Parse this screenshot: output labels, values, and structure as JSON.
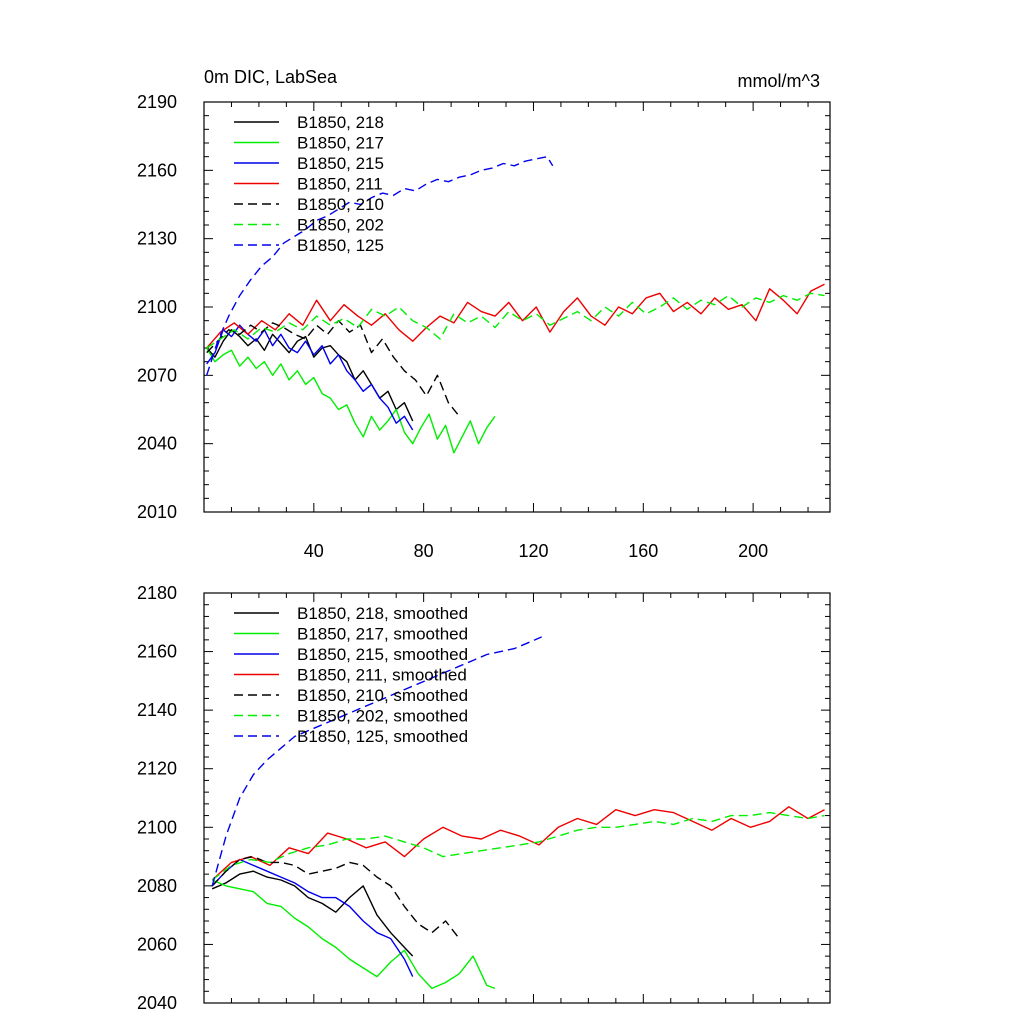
{
  "figure": {
    "title": "0m DIC, LabSea",
    "units": "mmol/m^3"
  },
  "chart_data": [
    {
      "type": "line",
      "panel": "top",
      "title": "0m DIC, LabSea",
      "units": "mmol/m^3",
      "xlim": [
        0,
        228
      ],
      "ylim": [
        2010,
        2190
      ],
      "xticks": [
        40,
        80,
        120,
        160,
        200
      ],
      "yticks": [
        2010,
        2040,
        2070,
        2100,
        2130,
        2160,
        2190
      ],
      "legend_position": "top-left",
      "series": [
        {
          "name": "B1850, 218",
          "color": "#000000",
          "dash": "solid",
          "x": [
            1,
            4,
            7,
            10,
            13,
            16,
            19,
            22,
            25,
            28,
            31,
            34,
            37,
            40,
            43,
            46,
            49,
            52,
            55,
            58,
            61,
            64,
            67,
            70,
            73,
            76
          ],
          "y": [
            2082,
            2078,
            2085,
            2090,
            2087,
            2083,
            2086,
            2081,
            2088,
            2084,
            2080,
            2085,
            2087,
            2078,
            2082,
            2083,
            2079,
            2076,
            2068,
            2072,
            2066,
            2060,
            2063,
            2055,
            2058,
            2050
          ]
        },
        {
          "name": "B1850, 217",
          "color": "#00ee00",
          "dash": "solid",
          "x": [
            1,
            4,
            7,
            10,
            13,
            16,
            19,
            22,
            25,
            28,
            31,
            34,
            37,
            40,
            43,
            46,
            49,
            52,
            55,
            58,
            61,
            64,
            67,
            70,
            73,
            76,
            79,
            82,
            85,
            88,
            91,
            94,
            97,
            100,
            103,
            106
          ],
          "y": [
            2082,
            2076,
            2079,
            2081,
            2074,
            2078,
            2073,
            2076,
            2070,
            2075,
            2068,
            2072,
            2066,
            2069,
            2062,
            2060,
            2055,
            2057,
            2049,
            2043,
            2052,
            2046,
            2050,
            2055,
            2045,
            2040,
            2047,
            2053,
            2042,
            2048,
            2036,
            2043,
            2050,
            2040,
            2047,
            2052
          ]
        },
        {
          "name": "B1850, 215",
          "color": "#0000ee",
          "dash": "solid",
          "x": [
            1,
            4,
            7,
            10,
            13,
            16,
            19,
            22,
            25,
            28,
            31,
            34,
            37,
            40,
            43,
            46,
            49,
            52,
            55,
            58,
            61,
            64,
            67,
            70,
            73,
            76
          ],
          "y": [
            2075,
            2080,
            2090,
            2087,
            2092,
            2088,
            2085,
            2090,
            2083,
            2088,
            2082,
            2080,
            2085,
            2079,
            2083,
            2075,
            2079,
            2072,
            2068,
            2063,
            2066,
            2060,
            2056,
            2049,
            2052,
            2046
          ]
        },
        {
          "name": "B1850, 211",
          "color": "#ee0000",
          "dash": "solid",
          "x": [
            1,
            6,
            11,
            16,
            21,
            26,
            31,
            36,
            41,
            46,
            51,
            56,
            61,
            66,
            71,
            76,
            81,
            86,
            91,
            96,
            101,
            106,
            111,
            116,
            121,
            126,
            131,
            136,
            141,
            146,
            151,
            156,
            161,
            166,
            171,
            176,
            181,
            186,
            191,
            196,
            201,
            206,
            211,
            216,
            221,
            226
          ],
          "y": [
            2082,
            2089,
            2093,
            2088,
            2094,
            2090,
            2097,
            2092,
            2103,
            2094,
            2101,
            2096,
            2092,
            2097,
            2090,
            2085,
            2091,
            2096,
            2093,
            2102,
            2098,
            2096,
            2102,
            2094,
            2100,
            2089,
            2098,
            2104,
            2096,
            2092,
            2100,
            2097,
            2104,
            2106,
            2098,
            2102,
            2097,
            2104,
            2099,
            2101,
            2094,
            2108,
            2103,
            2097,
            2107,
            2110
          ]
        },
        {
          "name": "B1850, 210",
          "color": "#000000",
          "dash": "dashed",
          "x": [
            1,
            5,
            9,
            13,
            17,
            21,
            25,
            29,
            33,
            37,
            41,
            45,
            49,
            53,
            57,
            61,
            65,
            69,
            73,
            77,
            81,
            85,
            89,
            93
          ],
          "y": [
            2080,
            2085,
            2090,
            2088,
            2092,
            2089,
            2093,
            2091,
            2088,
            2086,
            2092,
            2088,
            2094,
            2089,
            2092,
            2080,
            2086,
            2078,
            2072,
            2068,
            2061,
            2070,
            2058,
            2052
          ]
        },
        {
          "name": "B1850, 202",
          "color": "#00ee00",
          "dash": "dashed",
          "x": [
            1,
            6,
            11,
            16,
            21,
            26,
            31,
            36,
            41,
            46,
            51,
            56,
            61,
            66,
            71,
            76,
            81,
            86,
            91,
            96,
            101,
            106,
            111,
            116,
            121,
            126,
            131,
            136,
            141,
            146,
            151,
            156,
            161,
            166,
            171,
            176,
            181,
            186,
            191,
            196,
            201,
            206,
            211,
            216,
            221,
            226
          ],
          "y": [
            2082,
            2086,
            2090,
            2086,
            2091,
            2089,
            2093,
            2090,
            2096,
            2092,
            2095,
            2091,
            2099,
            2096,
            2100,
            2094,
            2091,
            2086,
            2097,
            2093,
            2096,
            2091,
            2098,
            2094,
            2097,
            2092,
            2095,
            2098,
            2094,
            2100,
            2096,
            2102,
            2097,
            2100,
            2104,
            2099,
            2103,
            2101,
            2105,
            2100,
            2104,
            2102,
            2105,
            2103,
            2106,
            2105
          ]
        },
        {
          "name": "B1850, 125",
          "color": "#0000ee",
          "dash": "dashed",
          "x": [
            1,
            5,
            9,
            13,
            17,
            21,
            25,
            29,
            33,
            37,
            41,
            45,
            49,
            53,
            57,
            61,
            65,
            69,
            73,
            77,
            81,
            85,
            89,
            93,
            97,
            101,
            105,
            109,
            113,
            117,
            121,
            125,
            127
          ],
          "y": [
            2070,
            2085,
            2096,
            2105,
            2112,
            2118,
            2122,
            2128,
            2131,
            2134,
            2138,
            2140,
            2143,
            2146,
            2145,
            2148,
            2150,
            2149,
            2152,
            2151,
            2154,
            2156,
            2155,
            2157,
            2158,
            2160,
            2161,
            2163,
            2162,
            2164,
            2165,
            2166,
            2162
          ]
        }
      ]
    },
    {
      "type": "line",
      "panel": "bottom",
      "title": "",
      "xlim": [
        0,
        228
      ],
      "ylim": [
        2040,
        2180
      ],
      "xticks": [
        40,
        80,
        120,
        160,
        200
      ],
      "yticks": [
        2040,
        2060,
        2080,
        2100,
        2120,
        2140,
        2160,
        2180
      ],
      "legend_position": "top-left",
      "series": [
        {
          "name": "B1850, 218, smoothed",
          "color": "#000000",
          "dash": "solid",
          "x": [
            3,
            8,
            13,
            18,
            23,
            28,
            33,
            38,
            43,
            48,
            53,
            58,
            63,
            68,
            73,
            76
          ],
          "y": [
            2079,
            2081,
            2084,
            2085,
            2083,
            2082,
            2080,
            2076,
            2074,
            2071,
            2076,
            2080,
            2070,
            2064,
            2059,
            2056
          ]
        },
        {
          "name": "B1850, 217, smoothed",
          "color": "#00ee00",
          "dash": "solid",
          "x": [
            3,
            8,
            13,
            18,
            23,
            28,
            33,
            38,
            43,
            48,
            53,
            58,
            63,
            68,
            73,
            78,
            83,
            88,
            93,
            98,
            103,
            106
          ],
          "y": [
            2082,
            2080,
            2079,
            2078,
            2074,
            2073,
            2069,
            2066,
            2062,
            2059,
            2055,
            2052,
            2049,
            2054,
            2058,
            2050,
            2045,
            2047,
            2050,
            2056,
            2046,
            2045
          ]
        },
        {
          "name": "B1850, 215, smoothed",
          "color": "#0000ee",
          "dash": "solid",
          "x": [
            3,
            8,
            13,
            18,
            23,
            28,
            33,
            38,
            43,
            48,
            53,
            58,
            63,
            68,
            73,
            76
          ],
          "y": [
            2080,
            2085,
            2089,
            2087,
            2085,
            2083,
            2081,
            2078,
            2076,
            2076,
            2073,
            2068,
            2064,
            2062,
            2055,
            2049
          ]
        },
        {
          "name": "B1850, 211, smoothed",
          "color": "#ee0000",
          "dash": "solid",
          "x": [
            3,
            10,
            17,
            24,
            31,
            38,
            45,
            52,
            59,
            66,
            73,
            80,
            87,
            94,
            101,
            108,
            115,
            122,
            129,
            136,
            143,
            150,
            157,
            164,
            171,
            178,
            185,
            192,
            199,
            206,
            213,
            220,
            226
          ],
          "y": [
            2082,
            2088,
            2090,
            2087,
            2093,
            2091,
            2098,
            2096,
            2093,
            2095,
            2090,
            2096,
            2100,
            2097,
            2096,
            2099,
            2097,
            2094,
            2100,
            2103,
            2101,
            2106,
            2104,
            2106,
            2105,
            2102,
            2099,
            2103,
            2100,
            2102,
            2107,
            2103,
            2106
          ]
        },
        {
          "name": "B1850, 210, smoothed",
          "color": "#000000",
          "dash": "dashed",
          "x": [
            3,
            8,
            13,
            18,
            23,
            28,
            33,
            38,
            43,
            48,
            53,
            58,
            63,
            68,
            73,
            78,
            83,
            88,
            93
          ],
          "y": [
            2080,
            2085,
            2089,
            2090,
            2088,
            2088,
            2087,
            2084,
            2085,
            2086,
            2088,
            2087,
            2083,
            2080,
            2073,
            2067,
            2064,
            2068,
            2062
          ]
        },
        {
          "name": "B1850, 202, smoothed",
          "color": "#00ee00",
          "dash": "dashed",
          "x": [
            3,
            10,
            17,
            24,
            31,
            38,
            45,
            52,
            59,
            66,
            73,
            80,
            87,
            94,
            101,
            108,
            115,
            122,
            129,
            136,
            143,
            150,
            157,
            164,
            171,
            178,
            185,
            192,
            199,
            206,
            213,
            220,
            226
          ],
          "y": [
            2082,
            2087,
            2089,
            2088,
            2091,
            2093,
            2094,
            2096,
            2096,
            2097,
            2095,
            2093,
            2090,
            2091,
            2092,
            2093,
            2094,
            2095,
            2097,
            2099,
            2100,
            2100,
            2101,
            2102,
            2101,
            2103,
            2102,
            2104,
            2104,
            2105,
            2104,
            2103,
            2104
          ]
        },
        {
          "name": "B1850, 125, smoothed",
          "color": "#0000ee",
          "dash": "dashed",
          "x": [
            3,
            8,
            13,
            18,
            23,
            28,
            33,
            38,
            43,
            48,
            53,
            58,
            63,
            68,
            73,
            78,
            83,
            88,
            93,
            98,
            103,
            108,
            113,
            118,
            123
          ],
          "y": [
            2080,
            2097,
            2110,
            2118,
            2123,
            2127,
            2131,
            2133,
            2135,
            2137,
            2139,
            2141,
            2143,
            2145,
            2147,
            2149,
            2151,
            2153,
            2155,
            2157,
            2159,
            2160,
            2161,
            2163,
            2165
          ]
        }
      ]
    }
  ]
}
